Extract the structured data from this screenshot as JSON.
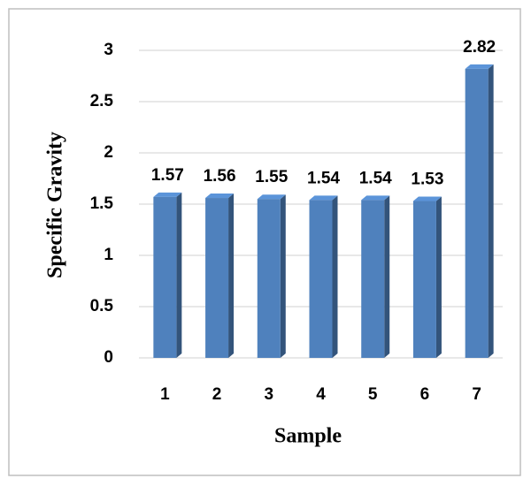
{
  "chart_data": {
    "type": "bar",
    "x_label": "Sample",
    "y_label": "Specific Gravity",
    "categories": [
      "1",
      "2",
      "3",
      "4",
      "5",
      "6",
      "7"
    ],
    "values": [
      1.57,
      1.56,
      1.55,
      1.54,
      1.54,
      1.53,
      2.82
    ],
    "color": "#4f81bd",
    "ylim": [
      0,
      3
    ],
    "yticks": [
      0,
      0.5,
      1,
      1.5,
      2,
      2.5,
      3
    ],
    "grid": true
  }
}
